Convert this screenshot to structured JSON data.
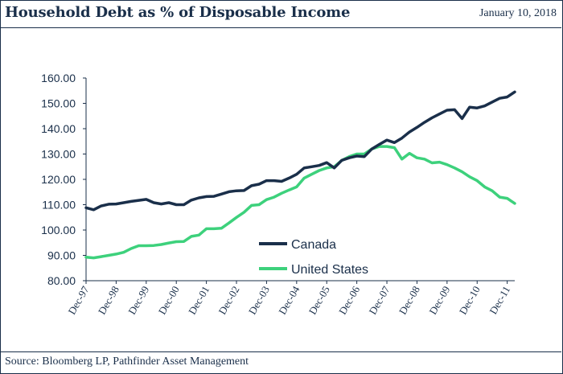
{
  "header": {
    "title": "Household Debt as % of Disposable Income",
    "date": "January 10, 2018"
  },
  "footer": {
    "source": "Source: Bloomberg LP, Pathfinder Asset Management"
  },
  "colors": {
    "canada": "#1a2f4a",
    "united_states": "#3dd17c",
    "text": "#1a2f4a"
  },
  "chart_data": {
    "type": "line",
    "title": "Household Debt as % of Disposable Income",
    "ylim": [
      80,
      160
    ],
    "yticks": [
      "80.00",
      "90.00",
      "100.00",
      "110.00",
      "120.00",
      "130.00",
      "140.00",
      "150.00",
      "160.00"
    ],
    "x_quarter_start": "Dec-97",
    "xticks": [
      {
        "label": "Dec-97",
        "index": 0
      },
      {
        "label": "Dec-98",
        "index": 4
      },
      {
        "label": "Dec-99",
        "index": 8
      },
      {
        "label": "Dec-00",
        "index": 12
      },
      {
        "label": "Dec-01",
        "index": 16
      },
      {
        "label": "Dec-02",
        "index": 20
      },
      {
        "label": "Dec-03",
        "index": 24
      },
      {
        "label": "Dec-04",
        "index": 28
      },
      {
        "label": "Dec-05",
        "index": 32
      },
      {
        "label": "Dec-06",
        "index": 36
      },
      {
        "label": "Dec-07",
        "index": 40
      },
      {
        "label": "Dec-08",
        "index": 44
      },
      {
        "label": "Dec-09",
        "index": 48
      },
      {
        "label": "Dec-10",
        "index": 52
      },
      {
        "label": "Dec-11",
        "index": 56
      }
    ],
    "legend_position": "center",
    "grid": false,
    "series": [
      {
        "name": "Canada",
        "values": [
          108.8,
          108.0,
          109.5,
          110.2,
          110.3,
          110.8,
          111.3,
          111.7,
          112.1,
          110.8,
          110.3,
          110.8,
          110.0,
          110.0,
          111.8,
          112.7,
          113.2,
          113.3,
          114.2,
          115.1,
          115.5,
          115.6,
          117.5,
          118.1,
          119.5,
          119.5,
          119.2,
          120.5,
          122.0,
          124.5,
          125.0,
          125.5,
          126.6,
          124.5,
          127.5,
          128.5,
          129.2,
          129.0,
          132.0,
          133.8,
          135.5,
          134.5,
          136.3,
          138.7,
          140.5,
          142.5,
          144.3,
          145.8,
          147.3,
          147.5,
          144.0,
          148.5,
          148.2,
          149.0,
          150.5,
          152.0,
          152.5,
          154.5
        ]
      },
      {
        "name": "United States",
        "values": [
          89.3,
          89.0,
          89.5,
          90.0,
          90.5,
          91.2,
          92.7,
          93.8,
          93.8,
          93.9,
          94.3,
          94.9,
          95.4,
          95.5,
          97.5,
          98.0,
          100.5,
          100.5,
          100.7,
          102.8,
          105.0,
          107.0,
          109.7,
          110.0,
          112.0,
          113.0,
          114.5,
          115.8,
          117.0,
          120.5,
          122.0,
          123.5,
          124.5,
          125.0,
          127.5,
          129.0,
          130.0,
          130.0,
          132.0,
          133.0,
          133.0,
          132.5,
          128.0,
          130.3,
          128.5,
          128.0,
          126.5,
          126.8,
          125.8,
          124.5,
          123.0,
          121.0,
          119.5,
          117.0,
          115.5,
          113.0,
          112.5,
          110.5
        ]
      }
    ]
  }
}
